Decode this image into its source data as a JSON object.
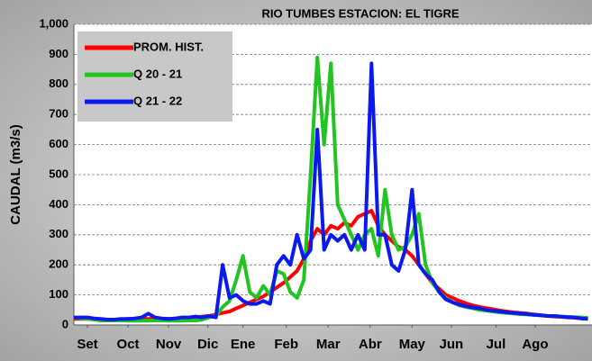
{
  "chart_data": {
    "type": "line",
    "title": "RIO TUMBES  ESTACION:  EL TIGRE",
    "y_label": "CAUDAL (m3/s)",
    "x": [
      5,
      10,
      15,
      20,
      25,
      30,
      35,
      40,
      45,
      50,
      55,
      60,
      65,
      70,
      75,
      80,
      85,
      90,
      95,
      100,
      105,
      110,
      115,
      120,
      125,
      130,
      135,
      140,
      145,
      150,
      155,
      160,
      165,
      170,
      175,
      180,
      185,
      190,
      195,
      200,
      205,
      210,
      215,
      220,
      225,
      230,
      235,
      240,
      245,
      250,
      255,
      260,
      265,
      270,
      275,
      280,
      285,
      290,
      295,
      300,
      305,
      310,
      315,
      320,
      325,
      330,
      335,
      340,
      345,
      350,
      355,
      360,
      365,
      370,
      375,
      380,
      385
    ],
    "xlim": [
      5,
      388
    ],
    "xticks": [
      {
        "value": 15,
        "label": "Set"
      },
      {
        "value": 45,
        "label": "Oct"
      },
      {
        "value": 75,
        "label": "Nov"
      },
      {
        "value": 104,
        "label": "Dic"
      },
      {
        "value": 130,
        "label": "Ene"
      },
      {
        "value": 162,
        "label": "Feb"
      },
      {
        "value": 193,
        "label": "Mar"
      },
      {
        "value": 224,
        "label": "Abr"
      },
      {
        "value": 255,
        "label": "May"
      },
      {
        "value": 284,
        "label": "Jun"
      },
      {
        "value": 317,
        "label": "Jul"
      },
      {
        "value": 346,
        "label": "Ago"
      }
    ],
    "ylim": [
      0,
      1000
    ],
    "yticks": [
      0,
      100,
      200,
      300,
      400,
      500,
      600,
      700,
      800,
      900,
      {
        "value": 1000,
        "label": "1,000"
      }
    ],
    "grid": true,
    "legend": "upper-left",
    "series": [
      {
        "name": "PROM. HIST.",
        "color": "#ff0000",
        "values": [
          20,
          20,
          20,
          20,
          18,
          18,
          18,
          18,
          20,
          20,
          20,
          20,
          20,
          20,
          20,
          22,
          22,
          24,
          25,
          28,
          30,
          35,
          40,
          45,
          55,
          65,
          75,
          85,
          95,
          110,
          125,
          140,
          160,
          180,
          220,
          280,
          320,
          300,
          330,
          320,
          340,
          330,
          360,
          370,
          380,
          330,
          300,
          280,
          260,
          250,
          230,
          200,
          170,
          140,
          120,
          100,
          90,
          80,
          72,
          65,
          60,
          56,
          52,
          48,
          45,
          42,
          40,
          38,
          35,
          33,
          30,
          28,
          27,
          25,
          24,
          22,
          22
        ]
      },
      {
        "name": "Q 20 - 21",
        "color": "#22c422",
        "values": [
          25,
          22,
          20,
          18,
          15,
          15,
          15,
          15,
          14,
          14,
          14,
          14,
          15,
          15,
          14,
          14,
          14,
          15,
          15,
          18,
          25,
          30,
          60,
          80,
          150,
          230,
          110,
          90,
          130,
          100,
          180,
          170,
          110,
          90,
          150,
          500,
          890,
          600,
          870,
          400,
          350,
          300,
          250,
          300,
          320,
          230,
          450,
          300,
          250,
          260,
          300,
          370,
          200,
          140,
          110,
          90,
          75,
          65,
          60,
          55,
          50,
          48,
          45,
          42,
          40,
          38,
          36,
          35,
          33,
          32,
          30,
          30,
          28,
          27,
          26,
          25,
          24
        ]
      },
      {
        "name": "Q 21 - 22",
        "color": "#0a1aee",
        "values": [
          25,
          25,
          25,
          22,
          20,
          18,
          18,
          20,
          20,
          22,
          25,
          38,
          25,
          22,
          20,
          22,
          25,
          25,
          28,
          25,
          30,
          25,
          200,
          90,
          100,
          80,
          70,
          70,
          80,
          70,
          200,
          230,
          200,
          300,
          220,
          250,
          650,
          250,
          300,
          280,
          300,
          250,
          300,
          250,
          870,
          300,
          300,
          200,
          180,
          250,
          450,
          200,
          170,
          150,
          110,
          85,
          75,
          68,
          62,
          58,
          55,
          50,
          47,
          45,
          42,
          40,
          38,
          36,
          34,
          32,
          30,
          30,
          28,
          26,
          25,
          22,
          20
        ]
      }
    ]
  }
}
